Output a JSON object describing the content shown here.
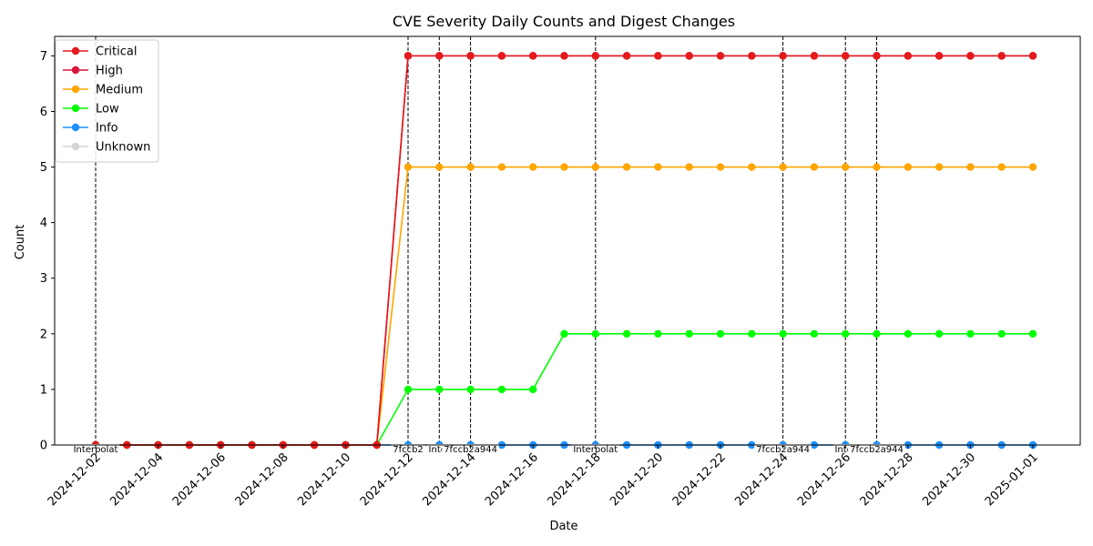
{
  "chart_data": {
    "type": "line",
    "title": "CVE Severity Daily Counts and Digest Changes",
    "xlabel": "Date",
    "ylabel": "Count",
    "ylim": [
      0,
      7.35
    ],
    "yticks": [
      0,
      1,
      2,
      3,
      4,
      5,
      6,
      7
    ],
    "x": [
      "2024-12-02",
      "2024-12-03",
      "2024-12-04",
      "2024-12-05",
      "2024-12-06",
      "2024-12-07",
      "2024-12-08",
      "2024-12-09",
      "2024-12-10",
      "2024-12-11",
      "2024-12-12",
      "2024-12-13",
      "2024-12-14",
      "2024-12-15",
      "2024-12-16",
      "2024-12-17",
      "2024-12-18",
      "2024-12-19",
      "2024-12-20",
      "2024-12-21",
      "2024-12-22",
      "2024-12-23",
      "2024-12-24",
      "2024-12-25",
      "2024-12-26",
      "2024-12-27",
      "2024-12-28",
      "2024-12-29",
      "2024-12-30",
      "2024-12-31",
      "2025-01-01"
    ],
    "xtick_labels": [
      "2024-12-02",
      "2024-12-04",
      "2024-12-06",
      "2024-12-08",
      "2024-12-10",
      "2024-12-12",
      "2024-12-14",
      "2024-12-16",
      "2024-12-18",
      "2024-12-20",
      "2024-12-22",
      "2024-12-24",
      "2024-12-26",
      "2024-12-28",
      "2024-12-30",
      "2025-01-01"
    ],
    "series": [
      {
        "name": "Critical",
        "color": "#e41a1c",
        "values": [
          0,
          0,
          0,
          0,
          0,
          0,
          0,
          0,
          0,
          0,
          7,
          7,
          7,
          7,
          7,
          7,
          7,
          7,
          7,
          7,
          7,
          7,
          7,
          7,
          7,
          7,
          7,
          7,
          7,
          7,
          7
        ]
      },
      {
        "name": "High",
        "color": "#dc143c",
        "values": [
          0,
          0,
          0,
          0,
          0,
          0,
          0,
          0,
          0,
          0,
          7,
          7,
          7,
          7,
          7,
          7,
          7,
          7,
          7,
          7,
          7,
          7,
          7,
          7,
          7,
          7,
          7,
          7,
          7,
          7,
          7
        ]
      },
      {
        "name": "Medium",
        "color": "#ffa500",
        "values": [
          0,
          0,
          0,
          0,
          0,
          0,
          0,
          0,
          0,
          0,
          5,
          5,
          5,
          5,
          5,
          5,
          5,
          5,
          5,
          5,
          5,
          5,
          5,
          5,
          5,
          5,
          5,
          5,
          5,
          5,
          5
        ]
      },
      {
        "name": "Low",
        "color": "#00ff00",
        "values": [
          0,
          0,
          0,
          0,
          0,
          0,
          0,
          0,
          0,
          0,
          1,
          1,
          1,
          1,
          1,
          2,
          2,
          2,
          2,
          2,
          2,
          2,
          2,
          2,
          2,
          2,
          2,
          2,
          2,
          2,
          2
        ]
      },
      {
        "name": "Info",
        "color": "#1e90ff",
        "values": [
          0,
          0,
          0,
          0,
          0,
          0,
          0,
          0,
          0,
          0,
          0,
          0,
          0,
          0,
          0,
          0,
          0,
          0,
          0,
          0,
          0,
          0,
          0,
          0,
          0,
          0,
          0,
          0,
          0,
          0,
          0
        ]
      },
      {
        "name": "Unknown",
        "color": "#d3d3d3",
        "values": [
          0,
          0,
          0,
          0,
          0,
          0,
          0,
          0,
          0,
          0,
          0,
          0,
          0,
          0,
          0,
          0,
          0,
          0,
          0,
          0,
          0,
          0,
          0,
          0,
          0,
          0,
          0,
          0,
          0,
          0,
          0
        ]
      }
    ],
    "digest_changes": [
      {
        "date": "2024-12-02",
        "label": "Interpolat"
      },
      {
        "date": "2024-12-12",
        "label": "7fccb2"
      },
      {
        "date": "2024-12-13",
        "label": "Inter"
      },
      {
        "date": "2024-12-14",
        "label": "7fccb2a944"
      },
      {
        "date": "2024-12-18",
        "label": "Interpolat"
      },
      {
        "date": "2024-12-24",
        "label": "7fccb2a944"
      },
      {
        "date": "2024-12-26",
        "label": "Inter"
      },
      {
        "date": "2024-12-27",
        "label": "7fccb2a944"
      }
    ],
    "legend_position": "top-left",
    "grid": false
  }
}
